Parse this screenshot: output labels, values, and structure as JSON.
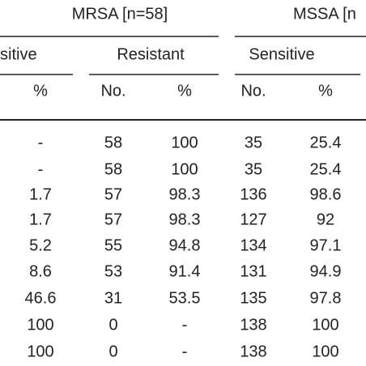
{
  "header": {
    "group1": "MRSA [n=58]",
    "group2": "MSSA [n"
  },
  "subheader": [
    "sitive",
    "Resistant",
    "Sensitive"
  ],
  "columns": [
    "%",
    "No.",
    "%",
    "No.",
    "%"
  ],
  "table": {
    "rows": [
      [
        "-",
        "58",
        "100",
        "35",
        "25.4"
      ],
      [
        "-",
        "58",
        "100",
        "35",
        "25.4"
      ],
      [
        "1.7",
        "57",
        "98.3",
        "136",
        "98.6"
      ],
      [
        "1.7",
        "57",
        "98.3",
        "127",
        "92"
      ],
      [
        "5.2",
        "55",
        "94.8",
        "134",
        "97.1"
      ],
      [
        "8.6",
        "53",
        "91.4",
        "131",
        "94.9"
      ],
      [
        "46.6",
        "31",
        "53.5",
        "135",
        "97.8"
      ],
      [
        "100",
        "0",
        "-",
        "138",
        "100"
      ],
      [
        "100",
        "0",
        "-",
        "138",
        "100"
      ]
    ]
  }
}
